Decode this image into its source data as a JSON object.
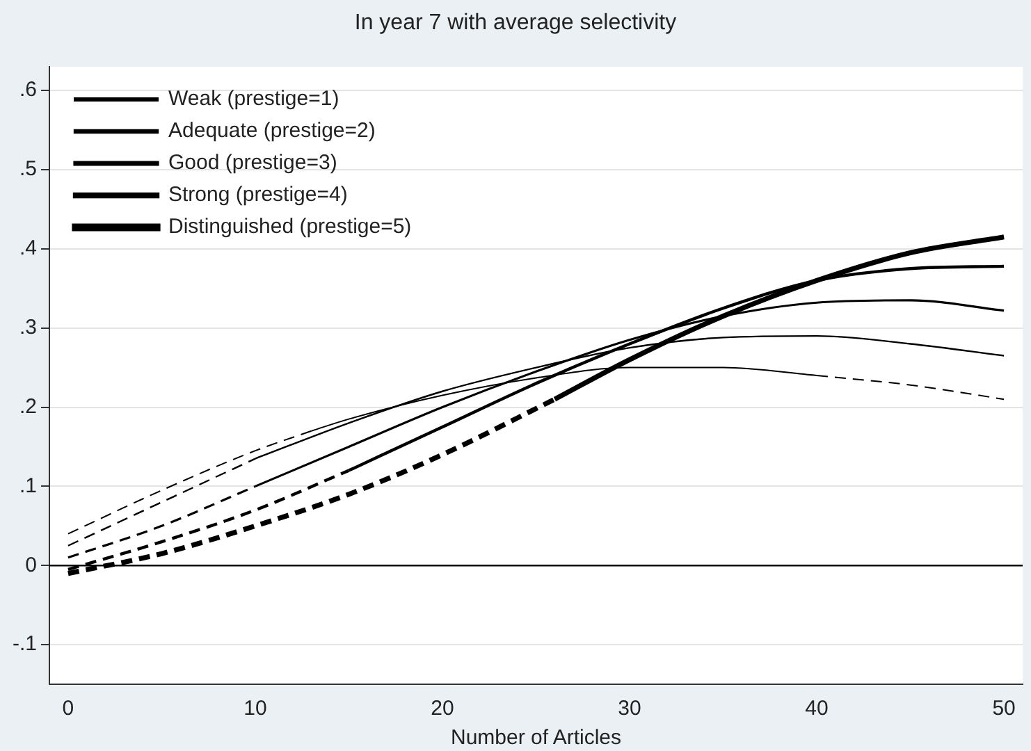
{
  "chart_data": {
    "type": "line",
    "title": "In year 7 with average selectivity",
    "xlabel": "Number of Articles",
    "xlim": [
      -1,
      51
    ],
    "xticks": [
      0,
      10,
      20,
      30,
      40,
      50
    ],
    "ylim": [
      -0.15,
      0.63
    ],
    "yticks": [
      {
        "value": -0.1,
        "label": "-.1"
      },
      0,
      {
        "value": 0.1,
        "label": ".1"
      },
      {
        "value": 0.2,
        "label": ".2"
      },
      {
        "value": 0.3,
        "label": ".3"
      },
      {
        "value": 0.4,
        "label": ".4"
      },
      {
        "value": 0.5,
        "label": ".5"
      },
      {
        "value": 0.6,
        "label": ".6"
      }
    ],
    "grid": "y",
    "legend": "top left",
    "marker": "none",
    "ref_lines": [
      {
        "axis": "y",
        "value": 0,
        "color": "#000000"
      }
    ],
    "series": [
      {
        "name": "Weak (prestige=1)",
        "color": "#000000",
        "line_style": "solid",
        "x": [
          13,
          15,
          20,
          25,
          30,
          35,
          40
        ],
        "values": [
          0.17,
          0.185,
          0.215,
          0.237,
          0.25,
          0.25,
          0.24
        ]
      },
      {
        "name": "Adequate (prestige=2)",
        "color": "#000000",
        "line_style": "solid",
        "x": [
          10,
          15,
          20,
          25,
          30,
          35,
          40,
          45,
          50
        ],
        "values": [
          0.135,
          0.18,
          0.22,
          0.25,
          0.275,
          0.288,
          0.29,
          0.28,
          0.265
        ]
      },
      {
        "name": "Good (prestige=3)",
        "color": "#000000",
        "line_style": "solid",
        "x": [
          10,
          15,
          20,
          25,
          30,
          35,
          40,
          45,
          50
        ],
        "values": [
          0.1,
          0.15,
          0.2,
          0.245,
          0.285,
          0.315,
          0.332,
          0.335,
          0.322
        ]
      },
      {
        "name": "Strong (prestige=4)",
        "color": "#000000",
        "line_style": "solid",
        "x": [
          15,
          20,
          25,
          30,
          35,
          40,
          45,
          50
        ],
        "values": [
          0.12,
          0.175,
          0.23,
          0.28,
          0.325,
          0.36,
          0.375,
          0.378
        ]
      },
      {
        "name": "Distinguished (prestige=5)",
        "color": "#000000",
        "line_style": "solid",
        "x": [
          26,
          30,
          35,
          40,
          45,
          50
        ],
        "values": [
          0.21,
          0.26,
          0.315,
          0.36,
          0.395,
          0.415
        ]
      },
      {
        "color": "#000000",
        "line_style": "dashed",
        "x": [
          0,
          5,
          10,
          13
        ],
        "values": [
          0.04,
          0.095,
          0.145,
          0.17
        ]
      },
      {
        "color": "#000000",
        "line_style": "dashed",
        "x": [
          0,
          5,
          10
        ],
        "values": [
          0.025,
          0.08,
          0.135
        ]
      },
      {
        "color": "#000000",
        "line_style": "dashed",
        "x": [
          0,
          5,
          10
        ],
        "values": [
          0.01,
          0.05,
          0.1
        ]
      },
      {
        "color": "#000000",
        "line_style": "dashed",
        "x": [
          0,
          5,
          10,
          15
        ],
        "values": [
          -0.005,
          0.03,
          0.07,
          0.12
        ]
      },
      {
        "color": "#000000",
        "line_style": "dashed",
        "x": [
          0,
          5,
          10,
          15,
          20,
          26
        ],
        "values": [
          -0.01,
          0.015,
          0.05,
          0.09,
          0.14,
          0.21
        ]
      },
      {
        "color": "#000000",
        "line_style": "dashed",
        "x": [
          40,
          45,
          50
        ],
        "values": [
          0.24,
          0.228,
          0.21
        ]
      }
    ]
  }
}
